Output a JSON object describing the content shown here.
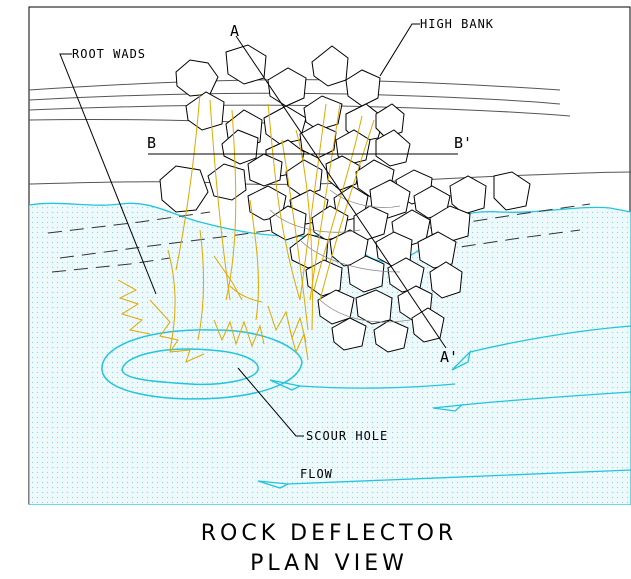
{
  "labels": {
    "high_bank": "HIGH BANK",
    "root_wads": "ROOT WADS",
    "section_a": "A",
    "section_a_prime": "A'",
    "section_b": "B",
    "section_b_prime": "B'",
    "scour_hole": "SCOUR HOLE",
    "flow": "FLOW"
  },
  "title": {
    "line1": "ROCK DEFLECTOR",
    "line2": "PLAN VIEW"
  },
  "colors": {
    "water_line": "#22c5dd",
    "water_fill": "#e6f7fa",
    "root_wads": "#e0a800",
    "ink": "#000000"
  }
}
